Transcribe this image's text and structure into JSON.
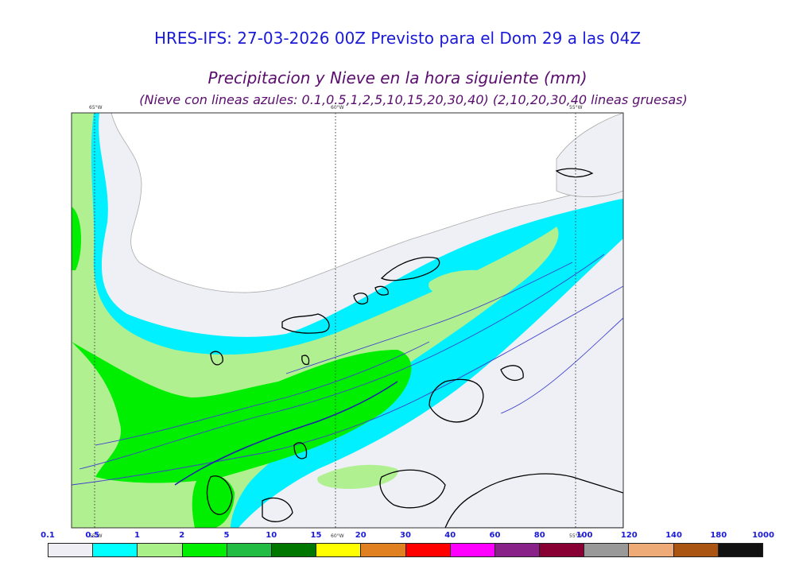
{
  "header": {
    "title": "HRES-IFS: 27-03-2026 00Z Previsto para el Dom 29 a las 04Z",
    "subtitle": "Precipitacion y Nieve en la hora siguiente (mm)",
    "note": "(Nieve con lineas azules: 0.1,0.5,1,2,5,10,15,20,30,40)  (2,10,20,30,40 lineas gruesas)"
  },
  "map": {
    "meridians": [
      "65°W",
      "60°W",
      "55°W"
    ],
    "colors": {
      "very_light": "#eef0f6",
      "cyan": "#00f0ff",
      "light_green": "#b0f090",
      "green": "#00ee00",
      "dark_green": "#22bb33",
      "land_outline": "#000000",
      "snow_line": "#4040cc"
    }
  },
  "legend": {
    "ticks": [
      "0.1",
      "0.5",
      "1",
      "2",
      "5",
      "10",
      "15",
      "20",
      "30",
      "40",
      "60",
      "80",
      "100",
      "120",
      "140",
      "180",
      "1000"
    ],
    "colors": [
      "#eeeef4",
      "#00ffff",
      "#aaf088",
      "#00ee00",
      "#22bb44",
      "#007700",
      "#ffff00",
      "#e08020",
      "#ff0000",
      "#ff00ff",
      "#882288",
      "#880033",
      "#999999",
      "#eeaa77",
      "#aa5511",
      "#111111"
    ]
  }
}
